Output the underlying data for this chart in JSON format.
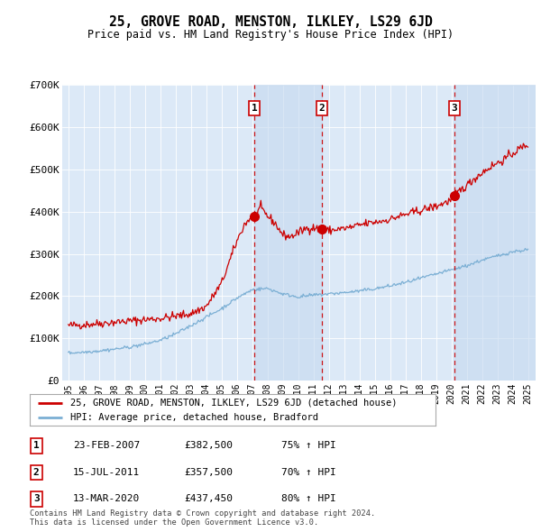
{
  "title": "25, GROVE ROAD, MENSTON, ILKLEY, LS29 6JD",
  "subtitle": "Price paid vs. HM Land Registry's House Price Index (HPI)",
  "background_color": "#ffffff",
  "plot_bg_color": "#dce9f7",
  "shade_color": "#c5d9f0",
  "ylim": [
    0,
    700000
  ],
  "yticks": [
    0,
    100000,
    200000,
    300000,
    400000,
    500000,
    600000,
    700000
  ],
  "ytick_labels": [
    "£0",
    "£100K",
    "£200K",
    "£300K",
    "£400K",
    "£500K",
    "£600K",
    "£700K"
  ],
  "sale_dates_num": [
    2007.14,
    2011.54,
    2020.19
  ],
  "sale_prices": [
    382500,
    357500,
    437450
  ],
  "sale_labels": [
    "1",
    "2",
    "3"
  ],
  "legend_line1": "25, GROVE ROAD, MENSTON, ILKLEY, LS29 6JD (detached house)",
  "legend_line2": "HPI: Average price, detached house, Bradford",
  "table_entries": [
    {
      "num": "1",
      "date": "23-FEB-2007",
      "price": "£382,500",
      "pct": "75% ↑ HPI"
    },
    {
      "num": "2",
      "date": "15-JUL-2011",
      "price": "£357,500",
      "pct": "70% ↑ HPI"
    },
    {
      "num": "3",
      "date": "13-MAR-2020",
      "price": "£437,450",
      "pct": "80% ↑ HPI"
    }
  ],
  "footer": "Contains HM Land Registry data © Crown copyright and database right 2024.\nThis data is licensed under the Open Government Licence v3.0.",
  "red_line_color": "#cc0000",
  "blue_line_color": "#7bafd4",
  "dashed_color": "#cc0000",
  "xmin": 1995,
  "xmax": 2025
}
